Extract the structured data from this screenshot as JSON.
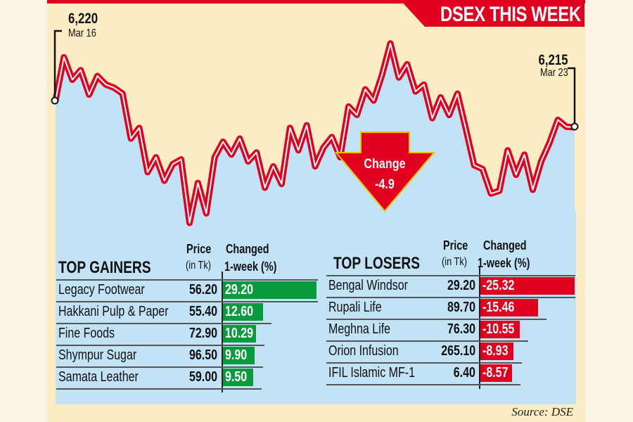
{
  "chart_data": {
    "type": "line",
    "title": "DSEX THIS WEEK",
    "start": {
      "value": "6,220",
      "date": "Mar 16"
    },
    "end": {
      "value": "6,215",
      "date": "Mar 23"
    },
    "change_label": "Change",
    "change_value": "-4.9",
    "values": [
      6220.0,
      6228.1,
      6223.9,
      6225.7,
      6221.1,
      6224.6,
      6223.0,
      6222.4,
      6221.3,
      6212.9,
      6214.9,
      6206.6,
      6209.4,
      6205.0,
      6208.1,
      6209.0,
      6197.1,
      6204.6,
      6198.9,
      6209.4,
      6212.3,
      6209.9,
      6212.9,
      6208.6,
      6210.3,
      6203.7,
      6207.7,
      6204.4,
      6214.9,
      6210.7,
      6215.4,
      6207.7,
      6211.2,
      6213.2,
      6209.4,
      6218.9,
      6217.3,
      6222.1,
      6220.0,
      6224.8,
      6230.7,
      6224.3,
      6226.8,
      6221.7,
      6223.0,
      6216.7,
      6220.6,
      6217.3,
      6221.3,
      6214.7,
      6207.9,
      6207.2,
      6202.6,
      6203.1,
      6210.7,
      6206.1,
      6209.9,
      6203.3,
      6208.6,
      6212.1,
      6216.4,
      6215.1,
      6215.0
    ],
    "colors": {
      "line": "#e2001f",
      "area": "#c2e2f6",
      "background": "#fdedc4",
      "gain_bar": "#0a9b3e",
      "loss_bar": "#e2001f"
    }
  },
  "gainers": {
    "title": "TOP GAINERS",
    "price_header": "Price",
    "price_sub": "(in Tk)",
    "change_header": "Changed",
    "change_sub": "1-week (%)",
    "rows": [
      {
        "name": "Legacy Footwear",
        "price": "56.20",
        "change": "29.20"
      },
      {
        "name": "Hakkani Pulp & Paper",
        "price": "55.40",
        "change": "12.60"
      },
      {
        "name": "Fine Foods",
        "price": "72.90",
        "change": "10.29"
      },
      {
        "name": "Shympur Sugar",
        "price": "96.50",
        "change": "9.90"
      },
      {
        "name": "Samata Leather",
        "price": "59.00",
        "change": "9.50"
      }
    ]
  },
  "losers": {
    "title": "TOP LOSERS",
    "price_header": "Price",
    "price_sub": "(in Tk)",
    "change_header": "Changed",
    "change_sub": "1-week (%)",
    "rows": [
      {
        "name": "Bengal Windsor",
        "price": "29.20",
        "change": "-25.32"
      },
      {
        "name": "Rupali Life",
        "price": "89.70",
        "change": "-15.46"
      },
      {
        "name": "Meghna Life",
        "price": "76.30",
        "change": "-10.55"
      },
      {
        "name": "Orion Infusion",
        "price": "265.10",
        "change": "-8.93"
      },
      {
        "name": "IFIL Islamic MF-1",
        "price": "6.40",
        "change": "-8.57"
      }
    ]
  },
  "source": "Source: DSE"
}
